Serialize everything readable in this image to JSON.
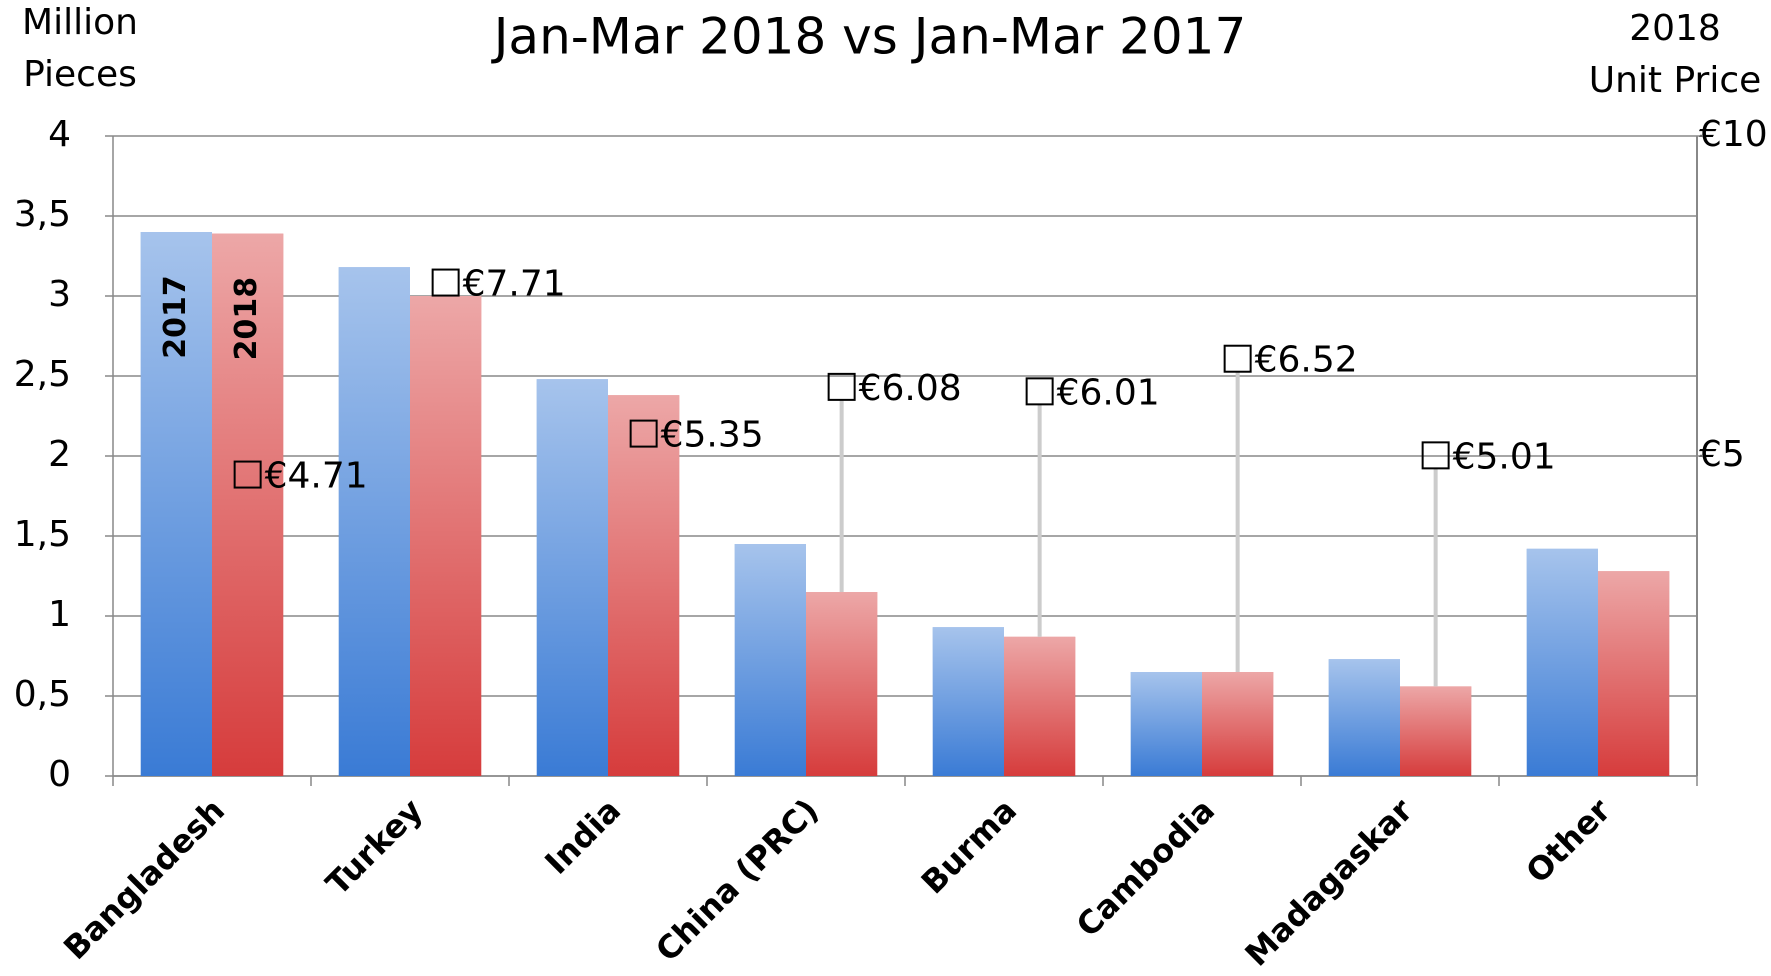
{
  "chart_data": {
    "type": "bar",
    "title": "Jan-Mar 2018 vs Jan-Mar 2017",
    "y_label": [
      "Million",
      "Pieces"
    ],
    "y2_label": [
      "2018",
      "Unit Price"
    ],
    "categories": [
      "Bangladesh",
      "Turkey",
      "India",
      "China (PRC)",
      "Burma",
      "Cambodia",
      "Madagaskar",
      "Other"
    ],
    "series": [
      {
        "name": "2017",
        "color": "#3a7bd5",
        "values": [
          3.4,
          3.18,
          2.48,
          1.45,
          0.93,
          0.65,
          0.73,
          1.42
        ]
      },
      {
        "name": "2018",
        "color": "#d63c3c",
        "values": [
          3.39,
          3.0,
          2.38,
          1.15,
          0.87,
          0.65,
          0.56,
          1.28
        ]
      },
      {
        "name": "2018 Unit Price",
        "axis": "y2",
        "type": "marker",
        "color": "#000000",
        "values": [
          4.71,
          7.71,
          5.35,
          6.08,
          6.01,
          6.52,
          5.01,
          null
        ],
        "value_labels": [
          "€4.71",
          "€7.71",
          "€5.35",
          "€6.08",
          "€6.01",
          "€6.52",
          "€5.01",
          null
        ]
      }
    ],
    "ylim": [
      0,
      4
    ],
    "yticks": [
      0,
      {
        "value": 0.5,
        "label": "0,5"
      },
      1,
      {
        "value": 1.5,
        "label": "1,5"
      },
      2,
      {
        "value": 2.5,
        "label": "2,5"
      },
      3,
      {
        "value": 3.5,
        "label": "3,5"
      },
      4
    ],
    "y2lim": [
      0,
      10
    ],
    "y2ticks": [
      {
        "value": 5,
        "label": "€5"
      },
      {
        "value": 10,
        "label": "€10"
      }
    ],
    "grid": true
  }
}
